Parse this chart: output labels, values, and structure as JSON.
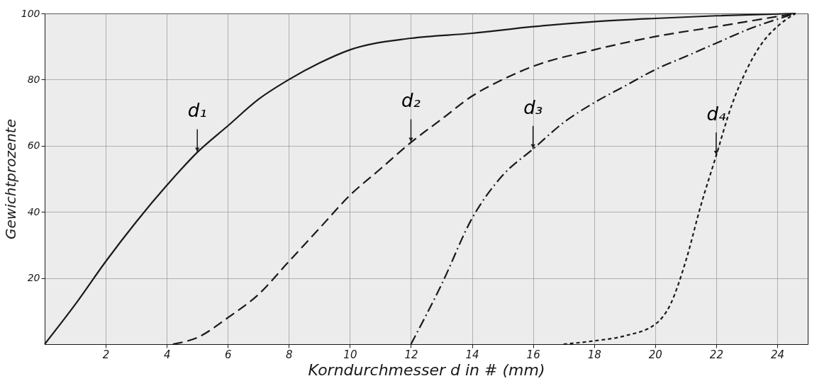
{
  "chart_data": {
    "type": "line",
    "xlabel": "Korndurchmesser  d  in # (mm)",
    "ylabel": "Gewichtprozente",
    "xlim": [
      0,
      25
    ],
    "xticks": [
      2,
      4,
      6,
      8,
      10,
      12,
      14,
      16,
      18,
      20,
      22,
      24
    ],
    "ylim": [
      0,
      100
    ],
    "yticks": [
      20,
      40,
      60,
      80,
      100
    ],
    "grid": true,
    "series": [
      {
        "color": "#1a1a1a",
        "line_style": "solid",
        "x": [
          0,
          1,
          2,
          3,
          4,
          5,
          6,
          7,
          8,
          9,
          10,
          12,
          14,
          16,
          18,
          20,
          22,
          24.6
        ],
        "values": [
          0,
          12,
          25,
          37,
          48,
          58,
          66,
          74,
          80,
          85,
          89,
          92.5,
          94,
          96,
          97.5,
          98.5,
          99.3,
          100
        ]
      },
      {
        "color": "#1a1a1a",
        "line_style": "dashed",
        "x": [
          4.2,
          5,
          6,
          7,
          8,
          9,
          10,
          11,
          12,
          13,
          14,
          15,
          16,
          18,
          20,
          22,
          24.6
        ],
        "values": [
          0,
          2,
          8,
          15,
          25,
          35,
          45,
          53,
          61,
          68,
          75,
          80,
          84,
          89,
          93,
          96,
          100
        ]
      },
      {
        "color": "#1a1a1a",
        "line_style": "dashdot",
        "x": [
          12,
          13,
          14,
          15,
          16,
          17,
          18,
          19,
          20,
          21,
          22,
          23,
          24.6
        ],
        "values": [
          0,
          18,
          38,
          51,
          59,
          67,
          73,
          78,
          83,
          87,
          91,
          95,
          100
        ]
      },
      {
        "color": "#1a1a1a",
        "line_style": "dotted",
        "x": [
          17,
          18,
          19,
          20,
          20.5,
          21,
          21.5,
          22,
          22.5,
          23,
          23.5,
          24,
          24.6
        ],
        "values": [
          0,
          1,
          2.5,
          6,
          12,
          25,
          42,
          57,
          72,
          83,
          91,
          96,
          100
        ]
      }
    ],
    "annotations": [
      {
        "text": "d₁",
        "x": 5,
        "y": 58
      },
      {
        "text": "d₂",
        "x": 12,
        "y": 61
      },
      {
        "text": "d₃",
        "x": 16,
        "y": 59
      },
      {
        "text": "d₄",
        "x": 22,
        "y": 57
      }
    ]
  }
}
